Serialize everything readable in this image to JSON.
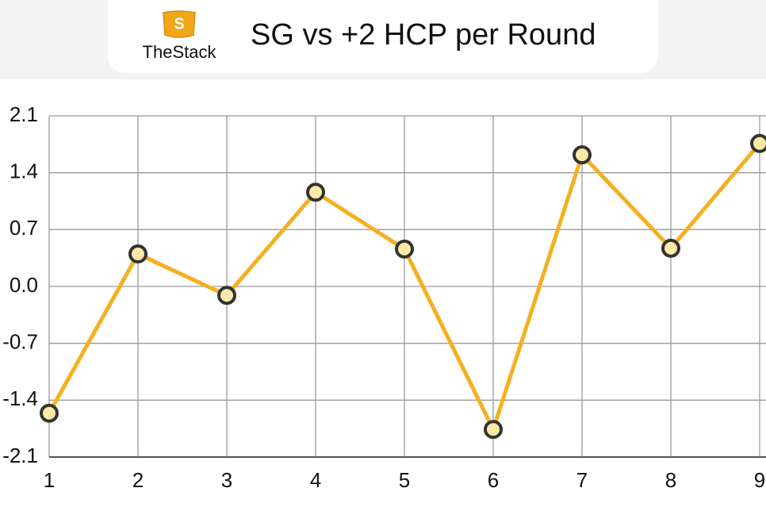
{
  "header": {
    "logo_text": "TheStack"
  },
  "chart_data": {
    "type": "line",
    "title": "SG vs +2 HCP per Round",
    "x": [
      1,
      2,
      3,
      4,
      5,
      6,
      7,
      8,
      9
    ],
    "series": [
      {
        "name": "SG vs +2 HCP",
        "color": "#f5b021",
        "values": [
          -1.56,
          0.4,
          -0.11,
          1.16,
          0.46,
          -1.76,
          1.62,
          0.47,
          1.76
        ]
      }
    ],
    "xlim": [
      1,
      9
    ],
    "xticks": [
      1,
      2,
      3,
      4,
      5,
      6,
      7,
      8,
      9
    ],
    "ylim": [
      -2.1,
      2.1
    ],
    "yticks": [
      -2.1,
      -1.4,
      -0.7,
      {
        "value": 0,
        "label": "0.0"
      },
      0.7,
      1.4,
      2.1
    ],
    "grid": true
  }
}
